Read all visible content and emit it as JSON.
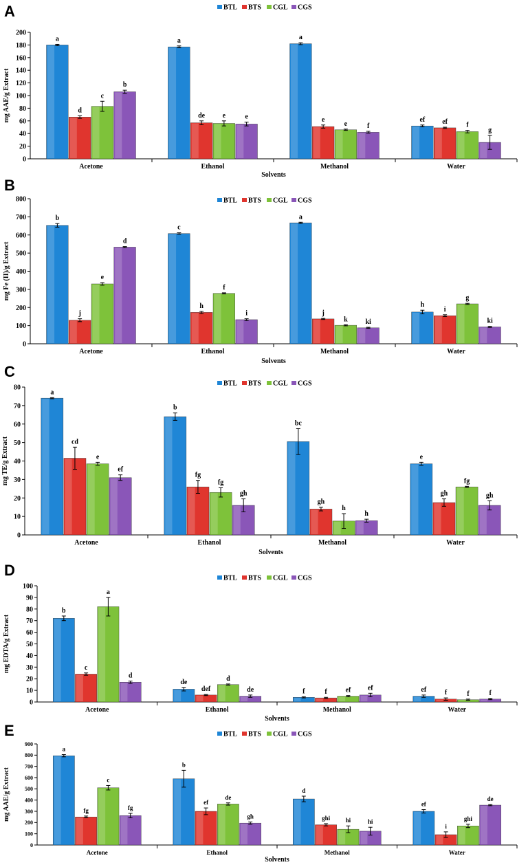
{
  "colors": {
    "BTL": "#1f86d6",
    "BTS": "#e0352e",
    "CGL": "#7ec23a",
    "CGS": "#8a56b8"
  },
  "chart_data": [
    {
      "panel": "A",
      "type": "bar",
      "ylabel": "mg AAE/g Extract",
      "xlabel": "Solvents",
      "ylim": [
        0,
        200
      ],
      "yticks": [
        0,
        20,
        40,
        60,
        80,
        100,
        120,
        140,
        160,
        180,
        200
      ],
      "categories": [
        "Acetone",
        "Ethanol",
        "Methanol",
        "Water"
      ],
      "legend": [
        "BTL",
        "BTS",
        "CGL",
        "CGS"
      ],
      "series": [
        {
          "name": "BTL",
          "values": [
            180,
            177,
            182,
            52
          ],
          "errors": [
            1,
            1.5,
            1.5,
            1.5
          ],
          "letters": [
            "a",
            "a",
            "a",
            "ef"
          ]
        },
        {
          "name": "BTS",
          "values": [
            66,
            57,
            51,
            49
          ],
          "errors": [
            2,
            3,
            2.5,
            1
          ],
          "letters": [
            "d",
            "de",
            "e",
            "ef"
          ]
        },
        {
          "name": "CGL",
          "values": [
            83,
            56,
            46,
            43
          ],
          "errors": [
            8,
            4,
            1,
            2
          ],
          "letters": [
            "c",
            "e",
            "e",
            "f"
          ]
        },
        {
          "name": "CGS",
          "values": [
            106,
            55,
            42,
            26
          ],
          "errors": [
            2.5,
            3,
            1.5,
            11
          ],
          "letters": [
            "b",
            "e",
            "f",
            "g"
          ]
        }
      ]
    },
    {
      "panel": "B",
      "type": "bar",
      "ylabel": "mg Fe (II)/g Extract",
      "xlabel": "Solvents",
      "ylim": [
        0,
        800
      ],
      "yticks": [
        0,
        100,
        200,
        300,
        400,
        500,
        600,
        700,
        800
      ],
      "categories": [
        "Acetone",
        "Ethanol",
        "Methanol",
        "Water"
      ],
      "legend": [
        "BTL",
        "BTS",
        "CGL",
        "CGS"
      ],
      "series": [
        {
          "name": "BTL",
          "values": [
            653,
            608,
            667,
            175
          ],
          "errors": [
            10,
            4,
            3,
            10
          ],
          "letters": [
            "b",
            "c",
            "a",
            "h"
          ]
        },
        {
          "name": "BTS",
          "values": [
            130,
            173,
            137,
            155
          ],
          "errors": [
            8,
            6,
            3,
            5
          ],
          "letters": [
            "j",
            "h",
            "j",
            "i"
          ]
        },
        {
          "name": "CGL",
          "values": [
            330,
            278,
            102,
            220
          ],
          "errors": [
            7,
            3,
            3,
            3
          ],
          "letters": [
            "e",
            "f",
            "k",
            "g"
          ]
        },
        {
          "name": "CGS",
          "values": [
            533,
            133,
            88,
            93
          ],
          "errors": [
            3,
            5,
            3,
            3
          ],
          "letters": [
            "d",
            "i",
            "ki",
            "ki"
          ]
        }
      ]
    },
    {
      "panel": "C",
      "type": "bar",
      "ylabel": "mg TE/g Extract",
      "xlabel": "Solvents",
      "ylim": [
        0,
        80
      ],
      "yticks": [
        0,
        10,
        20,
        30,
        40,
        50,
        60,
        70,
        80
      ],
      "categories": [
        "Acetone",
        "Ethanol",
        "Methanol",
        "Water"
      ],
      "legend": [
        "BTL",
        "BTS",
        "CGL",
        "CGS"
      ],
      "series": [
        {
          "name": "BTL",
          "values": [
            74,
            64,
            50.5,
            38.5
          ],
          "errors": [
            0.3,
            2,
            7,
            0.8
          ],
          "letters": [
            "a",
            "b",
            "bc",
            "e"
          ]
        },
        {
          "name": "BTS",
          "values": [
            41.5,
            26,
            14,
            17.5
          ],
          "errors": [
            6,
            3.5,
            1,
            2
          ],
          "letters": [
            "cd",
            "fg",
            "gh",
            "gh"
          ]
        },
        {
          "name": "CGL",
          "values": [
            38.5,
            23,
            7.5,
            26
          ],
          "errors": [
            0.8,
            2.5,
            4,
            0.3
          ],
          "letters": [
            "e",
            "fg",
            "h",
            "fg"
          ]
        },
        {
          "name": "CGS",
          "values": [
            31,
            16,
            7.7,
            16
          ],
          "errors": [
            1.5,
            3.5,
            0.8,
            2.5
          ],
          "letters": [
            "ef",
            "gh",
            "h",
            "gh"
          ]
        }
      ]
    },
    {
      "panel": "D",
      "type": "bar",
      "ylabel": "mg EDTA/g Extract",
      "xlabel": "Solvents",
      "ylim": [
        0,
        100
      ],
      "yticks": [
        0,
        10,
        20,
        30,
        40,
        50,
        60,
        70,
        80,
        90,
        100
      ],
      "categories": [
        "Acetone",
        "Ethanol",
        "Methanol",
        "Water"
      ],
      "legend": [
        "BTL",
        "BTS",
        "CGL",
        "CGS"
      ],
      "series": [
        {
          "name": "BTL",
          "values": [
            72,
            11,
            4,
            5
          ],
          "errors": [
            2,
            1.5,
            0.5,
            1
          ],
          "letters": [
            "b",
            "de",
            "f",
            "ef"
          ]
        },
        {
          "name": "BTS",
          "values": [
            24,
            6,
            3.5,
            2.5
          ],
          "errors": [
            1,
            0.5,
            0.5,
            1
          ],
          "letters": [
            "c",
            "def",
            "f",
            "f"
          ]
        },
        {
          "name": "CGL",
          "values": [
            82,
            15,
            5,
            2
          ],
          "errors": [
            8,
            0.5,
            0.5,
            0.5
          ],
          "letters": [
            "a",
            "d",
            "ef",
            "f"
          ]
        },
        {
          "name": "CGS",
          "values": [
            17,
            5,
            6,
            2.5
          ],
          "errors": [
            1,
            1,
            1.5,
            0.5
          ],
          "letters": [
            "d",
            "de",
            "ef",
            "f"
          ]
        }
      ]
    },
    {
      "panel": "E",
      "type": "bar",
      "ylabel": "mg AAE/g Extract",
      "xlabel": "Solvents",
      "ylim": [
        0,
        900
      ],
      "yticks": [
        0,
        100,
        200,
        300,
        400,
        500,
        600,
        700,
        800,
        900
      ],
      "categories": [
        "Acetone",
        "Ethanol",
        "Methanol",
        "Water"
      ],
      "legend": [
        "BTL",
        "BTS",
        "CGL",
        "CGS"
      ],
      "series": [
        {
          "name": "BTL",
          "values": [
            795,
            590,
            410,
            300
          ],
          "errors": [
            10,
            75,
            25,
            15
          ],
          "letters": [
            "a",
            "b",
            "d",
            "ef"
          ]
        },
        {
          "name": "BTS",
          "values": [
            250,
            300,
            180,
            92
          ],
          "errors": [
            8,
            30,
            10,
            25
          ],
          "letters": [
            "fg",
            "ef",
            "ghi",
            "i"
          ]
        },
        {
          "name": "CGL",
          "values": [
            510,
            365,
            140,
            170
          ],
          "errors": [
            20,
            10,
            30,
            15
          ],
          "letters": [
            "c",
            "de",
            "hi",
            "ghi"
          ]
        },
        {
          "name": "CGS",
          "values": [
            262,
            195,
            123,
            355
          ],
          "errors": [
            20,
            10,
            35,
            5
          ],
          "letters": [
            "fg",
            "gh",
            "hi",
            "de"
          ]
        }
      ]
    }
  ]
}
